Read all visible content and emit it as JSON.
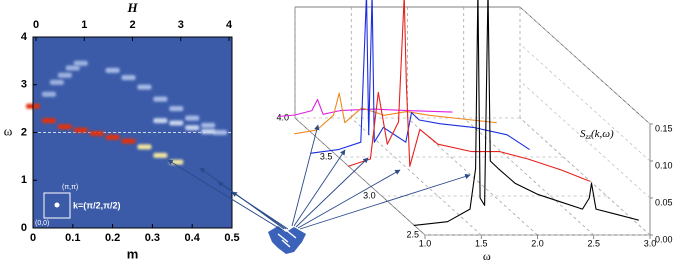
{
  "chart_data": [
    {
      "type": "heatmap",
      "xlabel": "m",
      "ylabel": "ω",
      "x2label": "H",
      "xlim": [
        0,
        0.5
      ],
      "xticks": [
        0,
        0.1,
        0.2,
        0.3,
        0.4,
        0.5
      ],
      "x2lim": [
        0,
        4
      ],
      "x2ticks": [
        0,
        1,
        2,
        3,
        4
      ],
      "ylim": [
        0,
        4
      ],
      "yticks": [
        0,
        1,
        2,
        3,
        4
      ],
      "background": "#3b5ba9",
      "reference_line": 2,
      "series": [
        {
          "color": "#e0300f",
          "x": [
            0,
            0.04,
            0.08,
            0.12,
            0.16,
            0.2,
            0.24
          ],
          "values": [
            2.55,
            2.25,
            2.12,
            2.05,
            1.98,
            1.9,
            1.82
          ]
        },
        {
          "color": "#f3e6a0",
          "x": [
            0.28,
            0.32,
            0.36
          ],
          "values": [
            1.7,
            1.52,
            1.38
          ]
        },
        {
          "color": "#9fb3e0",
          "x": [
            0.04,
            0.06,
            0.08,
            0.1,
            0.12
          ],
          "values": [
            2.8,
            3.05,
            3.2,
            3.35,
            3.45
          ]
        },
        {
          "color": "#a7bbe6",
          "x": [
            0.2,
            0.24,
            0.28,
            0.32,
            0.36,
            0.4,
            0.44,
            0.47
          ],
          "values": [
            3.3,
            3.15,
            2.95,
            2.7,
            2.5,
            2.3,
            2.15,
            2.0
          ]
        },
        {
          "color": "#c9d5f0",
          "x": [
            0.32,
            0.36,
            0.4,
            0.44
          ],
          "values": [
            2.25,
            2.2,
            2.1,
            2.02
          ]
        }
      ],
      "inset": {
        "corner_top": "(π,π)",
        "corner_bottom": "(0,0)",
        "k_label": "k=(π/2,π/2)"
      }
    },
    {
      "type": "waterfall3d",
      "xlabel": "ω",
      "xlim": [
        1.0,
        3.0
      ],
      "xticks": [
        {
          "value": 1.0,
          "label": "1.0"
        },
        {
          "value": 1.5,
          "label": "1.5"
        },
        {
          "value": 2.0,
          "label": "2.0"
        },
        {
          "value": 2.5,
          "label": "2.5"
        },
        {
          "value": 3.0,
          "label": "3.0"
        }
      ],
      "depth_lim": [
        2.5,
        4.0
      ],
      "depth_ticks": [
        {
          "value": 2.5,
          "label": "2.5"
        },
        {
          "value": 3.0,
          "label": "3.0"
        },
        {
          "value": 3.5,
          "label": "3.5"
        },
        {
          "value": 4.0,
          "label": "4.0"
        }
      ],
      "zlim": [
        0,
        0.15
      ],
      "zticks": [
        {
          "value": 0,
          "label": "0.00"
        },
        {
          "value": 0.05,
          "label": "0.05"
        },
        {
          "value": 0.1,
          "label": "0.10"
        },
        {
          "value": 0.15,
          "label": "0.15"
        }
      ],
      "zlabel": {
        "main": "S",
        "sub": "zz",
        "args": "(k,ω)"
      },
      "series": [
        {
          "color": "#000000",
          "depth": 2.5,
          "x": [
            0.9,
            1.2,
            1.4,
            1.45,
            1.47,
            1.49,
            1.53,
            1.56,
            1.58,
            1.65,
            1.8,
            2.0,
            2.2,
            2.4,
            2.46,
            2.48,
            2.52,
            2.7,
            2.9
          ],
          "values": [
            0.013,
            0.018,
            0.035,
            0.09,
            0.33,
            0.05,
            0.04,
            0.33,
            0.1,
            0.09,
            0.07,
            0.055,
            0.045,
            0.035,
            0.05,
            0.07,
            0.035,
            0.028,
            0.02
          ]
        },
        {
          "color": "#e8201a",
          "depth": 3.0,
          "x": [
            0.7,
            0.9,
            0.97,
            1.05,
            1.15,
            1.2,
            1.22,
            1.25,
            1.34,
            1.5,
            1.8,
            2.05,
            2.3,
            2.6,
            2.85
          ],
          "values": [
            0.04,
            0.05,
            0.14,
            0.07,
            0.1,
            0.27,
            0.15,
            0.04,
            0.09,
            0.07,
            0.06,
            0.06,
            0.05,
            0.035,
            0.02
          ]
        },
        {
          "color": "#1a2ee0",
          "depth": 3.5,
          "x": [
            0.75,
            1.0,
            1.2,
            1.25,
            1.27,
            1.3,
            1.32,
            1.4,
            1.6,
            1.65,
            1.72,
            1.9,
            2.2,
            2.5,
            2.7
          ],
          "values": [
            0.005,
            0.01,
            0.02,
            0.22,
            0.03,
            0.22,
            0.02,
            0.04,
            0.02,
            0.06,
            0.05,
            0.045,
            0.04,
            0.03,
            0.01
          ]
        },
        {
          "color": "#f08a20",
          "depth": 3.75,
          "x": [
            0.8,
            1.0,
            1.15,
            1.2,
            1.25,
            1.4,
            1.6,
            1.8,
            2.0,
            2.3,
            2.6
          ],
          "values": [
            0.005,
            0.01,
            0.03,
            0.06,
            0.02,
            0.04,
            0.03,
            0.035,
            0.03,
            0.025,
            0.02
          ]
        },
        {
          "color": "#e020e0",
          "depth": 4.0,
          "x": [
            0.85,
            1.0,
            1.15,
            1.2,
            1.25,
            1.4,
            1.7,
            2.0,
            2.4
          ],
          "values": [
            0.002,
            0.004,
            0.01,
            0.025,
            0.005,
            0.01,
            0.012,
            0.01,
            0.008
          ]
        }
      ]
    }
  ]
}
